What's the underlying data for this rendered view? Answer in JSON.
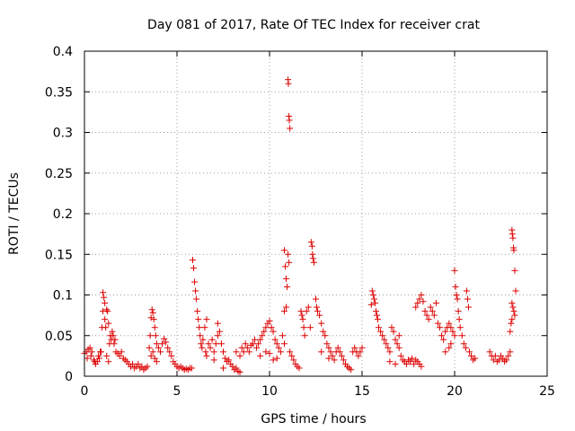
{
  "chart_data": {
    "type": "scatter",
    "title": "Day 081 of 2017, Rate Of TEC Index for receiver crat",
    "xlabel": "GPS time / hours",
    "ylabel": "ROTI / TECUs",
    "xlim": [
      0,
      25
    ],
    "ylim": [
      0,
      0.4
    ],
    "xticks": [
      0,
      5,
      10,
      15,
      20,
      25
    ],
    "yticks": [
      0,
      0.05,
      0.1,
      0.15,
      0.2,
      0.25,
      0.3,
      0.35,
      0.4
    ],
    "xtick_labels": [
      "0",
      "5",
      "10",
      "15",
      "20",
      "25"
    ],
    "ytick_labels": [
      "0",
      "0.05",
      "0.1",
      "0.15",
      "0.2",
      "0.25",
      "0.3",
      "0.35",
      "0.4"
    ],
    "grid": true,
    "marker": "+",
    "color": "#dd0000",
    "series": [
      {
        "name": "ROTI",
        "points": [
          [
            0.0,
            0.028
          ],
          [
            0.1,
            0.03
          ],
          [
            0.15,
            0.022
          ],
          [
            0.2,
            0.033
          ],
          [
            0.3,
            0.035
          ],
          [
            0.35,
            0.025
          ],
          [
            0.4,
            0.03
          ],
          [
            0.5,
            0.02
          ],
          [
            0.55,
            0.018
          ],
          [
            0.6,
            0.015
          ],
          [
            0.7,
            0.018
          ],
          [
            0.75,
            0.025
          ],
          [
            0.8,
            0.022
          ],
          [
            0.85,
            0.03
          ],
          [
            0.9,
            0.03
          ],
          [
            0.95,
            0.06
          ],
          [
            1.0,
            0.08
          ],
          [
            1.0,
            0.103
          ],
          [
            1.05,
            0.097
          ],
          [
            1.1,
            0.09
          ],
          [
            1.1,
            0.07
          ],
          [
            1.15,
            0.06
          ],
          [
            1.2,
            0.082
          ],
          [
            1.25,
            0.08
          ],
          [
            1.3,
            0.065
          ],
          [
            1.35,
            0.04
          ],
          [
            1.4,
            0.05
          ],
          [
            1.45,
            0.045
          ],
          [
            1.5,
            0.055
          ],
          [
            1.55,
            0.05
          ],
          [
            1.6,
            0.04
          ],
          [
            1.65,
            0.045
          ],
          [
            1.7,
            0.03
          ],
          [
            1.2,
            0.025
          ],
          [
            1.3,
            0.018
          ],
          [
            1.8,
            0.028
          ],
          [
            1.9,
            0.025
          ],
          [
            2.0,
            0.03
          ],
          [
            2.1,
            0.022
          ],
          [
            2.2,
            0.02
          ],
          [
            2.3,
            0.018
          ],
          [
            2.4,
            0.015
          ],
          [
            2.5,
            0.012
          ],
          [
            2.6,
            0.015
          ],
          [
            2.7,
            0.01
          ],
          [
            2.8,
            0.012
          ],
          [
            2.9,
            0.015
          ],
          [
            3.0,
            0.01
          ],
          [
            3.1,
            0.012
          ],
          [
            3.2,
            0.008
          ],
          [
            3.3,
            0.01
          ],
          [
            3.4,
            0.012
          ],
          [
            3.5,
            0.035
          ],
          [
            3.55,
            0.05
          ],
          [
            3.6,
            0.072
          ],
          [
            3.65,
            0.082
          ],
          [
            3.7,
            0.078
          ],
          [
            3.75,
            0.07
          ],
          [
            3.8,
            0.06
          ],
          [
            3.85,
            0.05
          ],
          [
            3.9,
            0.04
          ],
          [
            3.7,
            0.03
          ],
          [
            3.6,
            0.025
          ],
          [
            3.8,
            0.022
          ],
          [
            3.9,
            0.018
          ],
          [
            4.0,
            0.035
          ],
          [
            4.1,
            0.03
          ],
          [
            4.2,
            0.04
          ],
          [
            4.3,
            0.046
          ],
          [
            4.4,
            0.042
          ],
          [
            4.5,
            0.035
          ],
          [
            4.6,
            0.03
          ],
          [
            4.7,
            0.025
          ],
          [
            4.8,
            0.018
          ],
          [
            4.9,
            0.015
          ],
          [
            5.0,
            0.012
          ],
          [
            5.1,
            0.01
          ],
          [
            5.2,
            0.012
          ],
          [
            5.3,
            0.01
          ],
          [
            5.4,
            0.008
          ],
          [
            5.5,
            0.009
          ],
          [
            5.6,
            0.008
          ],
          [
            5.7,
            0.01
          ],
          [
            5.8,
            0.01
          ],
          [
            5.85,
            0.143
          ],
          [
            5.9,
            0.133
          ],
          [
            5.95,
            0.116
          ],
          [
            6.0,
            0.105
          ],
          [
            6.05,
            0.095
          ],
          [
            6.1,
            0.08
          ],
          [
            6.15,
            0.07
          ],
          [
            6.2,
            0.06
          ],
          [
            6.25,
            0.05
          ],
          [
            6.3,
            0.04
          ],
          [
            6.35,
            0.035
          ],
          [
            6.4,
            0.045
          ],
          [
            6.5,
            0.06
          ],
          [
            6.55,
            0.03
          ],
          [
            6.6,
            0.025
          ],
          [
            6.7,
            0.04
          ],
          [
            6.8,
            0.035
          ],
          [
            6.9,
            0.045
          ],
          [
            7.0,
            0.03
          ],
          [
            7.1,
            0.04
          ],
          [
            7.2,
            0.05
          ],
          [
            7.3,
            0.055
          ],
          [
            7.4,
            0.04
          ],
          [
            7.5,
            0.03
          ],
          [
            7.6,
            0.022
          ],
          [
            7.7,
            0.018
          ],
          [
            7.8,
            0.02
          ],
          [
            7.9,
            0.015
          ],
          [
            8.0,
            0.012
          ],
          [
            8.1,
            0.008
          ],
          [
            8.2,
            0.01
          ],
          [
            8.3,
            0.006
          ],
          [
            8.4,
            0.005
          ],
          [
            6.6,
            0.07
          ],
          [
            7.2,
            0.065
          ],
          [
            7.0,
            0.02
          ],
          [
            7.5,
            0.01
          ],
          [
            8.2,
            0.03
          ],
          [
            8.4,
            0.025
          ],
          [
            8.5,
            0.035
          ],
          [
            8.6,
            0.03
          ],
          [
            8.7,
            0.04
          ],
          [
            8.8,
            0.035
          ],
          [
            8.9,
            0.03
          ],
          [
            9.0,
            0.038
          ],
          [
            9.1,
            0.04
          ],
          [
            9.2,
            0.045
          ],
          [
            9.3,
            0.035
          ],
          [
            9.4,
            0.04
          ],
          [
            9.5,
            0.045
          ],
          [
            9.6,
            0.05
          ],
          [
            9.7,
            0.055
          ],
          [
            9.8,
            0.06
          ],
          [
            9.9,
            0.065
          ],
          [
            10.0,
            0.068
          ],
          [
            10.1,
            0.06
          ],
          [
            10.2,
            0.055
          ],
          [
            10.3,
            0.045
          ],
          [
            10.4,
            0.04
          ],
          [
            10.5,
            0.035
          ],
          [
            10.6,
            0.03
          ],
          [
            9.8,
            0.03
          ],
          [
            10.0,
            0.028
          ],
          [
            10.2,
            0.02
          ],
          [
            10.4,
            0.022
          ],
          [
            9.5,
            0.025
          ],
          [
            10.8,
            0.155
          ],
          [
            10.85,
            0.135
          ],
          [
            10.9,
            0.12
          ],
          [
            10.95,
            0.11
          ],
          [
            11.0,
            0.15
          ],
          [
            11.05,
            0.14
          ],
          [
            10.9,
            0.085
          ],
          [
            10.8,
            0.08
          ],
          [
            11.0,
            0.365
          ],
          [
            11.02,
            0.36
          ],
          [
            11.05,
            0.32
          ],
          [
            11.07,
            0.315
          ],
          [
            11.1,
            0.305
          ],
          [
            10.7,
            0.05
          ],
          [
            10.8,
            0.04
          ],
          [
            11.1,
            0.03
          ],
          [
            11.2,
            0.025
          ],
          [
            11.3,
            0.02
          ],
          [
            11.4,
            0.015
          ],
          [
            11.5,
            0.012
          ],
          [
            11.6,
            0.01
          ],
          [
            11.7,
            0.08
          ],
          [
            11.75,
            0.075
          ],
          [
            11.8,
            0.07
          ],
          [
            11.85,
            0.06
          ],
          [
            11.9,
            0.05
          ],
          [
            12.0,
            0.08
          ],
          [
            12.1,
            0.085
          ],
          [
            12.2,
            0.06
          ],
          [
            12.25,
            0.165
          ],
          [
            12.3,
            0.16
          ],
          [
            12.32,
            0.15
          ],
          [
            12.35,
            0.145
          ],
          [
            12.4,
            0.14
          ],
          [
            12.5,
            0.095
          ],
          [
            12.55,
            0.085
          ],
          [
            12.6,
            0.08
          ],
          [
            12.7,
            0.075
          ],
          [
            12.8,
            0.065
          ],
          [
            12.9,
            0.055
          ],
          [
            13.0,
            0.05
          ],
          [
            13.1,
            0.04
          ],
          [
            13.2,
            0.035
          ],
          [
            13.3,
            0.03
          ],
          [
            13.4,
            0.025
          ],
          [
            13.5,
            0.02
          ],
          [
            13.6,
            0.03
          ],
          [
            13.7,
            0.035
          ],
          [
            13.8,
            0.03
          ],
          [
            13.9,
            0.025
          ],
          [
            14.0,
            0.02
          ],
          [
            14.1,
            0.015
          ],
          [
            14.2,
            0.012
          ],
          [
            14.3,
            0.01
          ],
          [
            14.4,
            0.008
          ],
          [
            12.8,
            0.03
          ],
          [
            13.2,
            0.022
          ],
          [
            14.5,
            0.03
          ],
          [
            14.6,
            0.035
          ],
          [
            14.7,
            0.03
          ],
          [
            14.8,
            0.025
          ],
          [
            14.9,
            0.03
          ],
          [
            15.0,
            0.035
          ],
          [
            15.5,
            0.088
          ],
          [
            15.55,
            0.105
          ],
          [
            15.6,
            0.1
          ],
          [
            15.65,
            0.095
          ],
          [
            15.7,
            0.09
          ],
          [
            15.75,
            0.08
          ],
          [
            15.8,
            0.075
          ],
          [
            15.85,
            0.07
          ],
          [
            15.9,
            0.06
          ],
          [
            16.0,
            0.055
          ],
          [
            16.1,
            0.05
          ],
          [
            16.2,
            0.045
          ],
          [
            16.3,
            0.04
          ],
          [
            16.4,
            0.035
          ],
          [
            16.5,
            0.03
          ],
          [
            16.6,
            0.06
          ],
          [
            16.7,
            0.055
          ],
          [
            16.8,
            0.045
          ],
          [
            16.9,
            0.04
          ],
          [
            17.0,
            0.035
          ],
          [
            17.1,
            0.025
          ],
          [
            17.2,
            0.02
          ],
          [
            16.5,
            0.018
          ],
          [
            16.8,
            0.015
          ],
          [
            17.0,
            0.05
          ],
          [
            17.3,
            0.018
          ],
          [
            17.4,
            0.015
          ],
          [
            17.5,
            0.02
          ],
          [
            17.6,
            0.018
          ],
          [
            17.7,
            0.022
          ],
          [
            17.8,
            0.015
          ],
          [
            17.9,
            0.02
          ],
          [
            18.0,
            0.018
          ],
          [
            18.1,
            0.015
          ],
          [
            18.2,
            0.012
          ],
          [
            17.9,
            0.085
          ],
          [
            18.0,
            0.09
          ],
          [
            18.1,
            0.095
          ],
          [
            18.2,
            0.1
          ],
          [
            18.3,
            0.092
          ],
          [
            18.4,
            0.08
          ],
          [
            18.5,
            0.075
          ],
          [
            18.6,
            0.07
          ],
          [
            18.7,
            0.085
          ],
          [
            18.8,
            0.08
          ],
          [
            18.9,
            0.075
          ],
          [
            19.0,
            0.09
          ],
          [
            19.1,
            0.065
          ],
          [
            19.2,
            0.06
          ],
          [
            19.3,
            0.05
          ],
          [
            19.4,
            0.045
          ],
          [
            19.5,
            0.055
          ],
          [
            19.6,
            0.06
          ],
          [
            19.7,
            0.065
          ],
          [
            19.8,
            0.06
          ],
          [
            19.9,
            0.055
          ],
          [
            20.0,
            0.05
          ],
          [
            19.5,
            0.03
          ],
          [
            19.7,
            0.035
          ],
          [
            19.8,
            0.04
          ],
          [
            20.0,
            0.13
          ],
          [
            20.05,
            0.11
          ],
          [
            20.1,
            0.1
          ],
          [
            20.15,
            0.095
          ],
          [
            20.2,
            0.08
          ],
          [
            20.25,
            0.07
          ],
          [
            20.3,
            0.06
          ],
          [
            20.4,
            0.05
          ],
          [
            20.5,
            0.04
          ],
          [
            20.6,
            0.035
          ],
          [
            20.65,
            0.105
          ],
          [
            20.7,
            0.095
          ],
          [
            20.75,
            0.085
          ],
          [
            20.8,
            0.03
          ],
          [
            20.9,
            0.025
          ],
          [
            21.0,
            0.02
          ],
          [
            21.1,
            0.022
          ],
          [
            21.9,
            0.03
          ],
          [
            22.0,
            0.025
          ],
          [
            22.1,
            0.02
          ],
          [
            22.2,
            0.025
          ],
          [
            22.3,
            0.018
          ],
          [
            22.4,
            0.02
          ],
          [
            22.5,
            0.025
          ],
          [
            22.6,
            0.022
          ],
          [
            22.7,
            0.018
          ],
          [
            22.8,
            0.02
          ],
          [
            22.9,
            0.025
          ],
          [
            23.0,
            0.03
          ],
          [
            23.1,
            0.18
          ],
          [
            23.12,
            0.175
          ],
          [
            23.15,
            0.17
          ],
          [
            23.18,
            0.158
          ],
          [
            23.2,
            0.155
          ],
          [
            23.25,
            0.13
          ],
          [
            23.3,
            0.105
          ],
          [
            23.1,
            0.09
          ],
          [
            23.15,
            0.085
          ],
          [
            23.2,
            0.08
          ],
          [
            23.25,
            0.075
          ],
          [
            23.1,
            0.07
          ],
          [
            23.05,
            0.065
          ],
          [
            23.0,
            0.055
          ]
        ]
      }
    ]
  }
}
